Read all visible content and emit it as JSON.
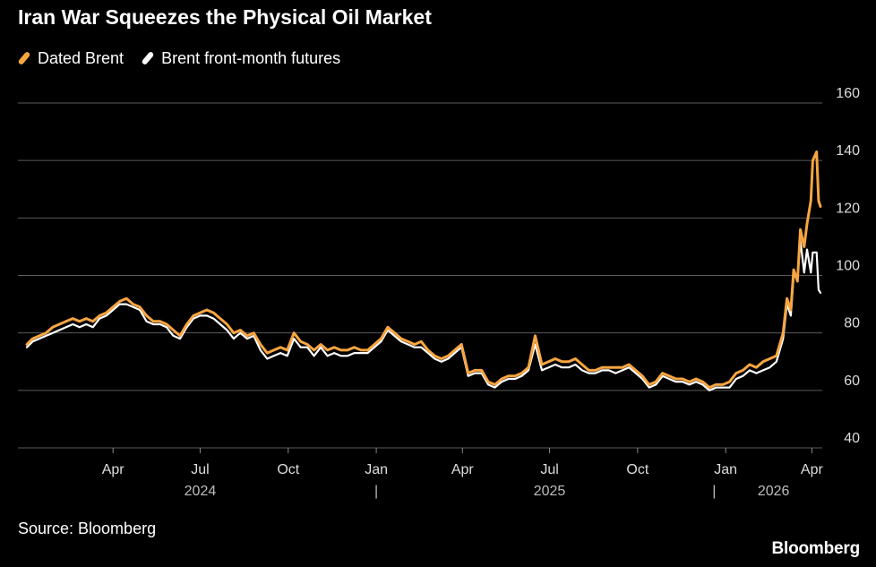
{
  "title": "Iran War Squeezes the Physical Oil Market",
  "legend": [
    {
      "label": "Dated Brent",
      "color": "#f7a541"
    },
    {
      "label": "Brent front-month futures",
      "color": "#ffffff"
    }
  ],
  "source": "Source: Bloomberg",
  "brand": "Bloomberg",
  "chart_data": {
    "type": "line",
    "title": "Iran War Squeezes the Physical Oil Market",
    "xlabel": "",
    "ylabel": "",
    "x_range": [
      "2024-01-02",
      "2026-04-10"
    ],
    "ylim": [
      40,
      160
    ],
    "y_ticks": [
      40,
      60,
      80,
      100,
      120,
      140,
      160
    ],
    "y_tick_labels": [
      "40",
      "60",
      "80",
      "100",
      "120",
      "140",
      "160"
    ],
    "x_ticks": [
      {
        "date": "2024-04-01",
        "label": "Apr"
      },
      {
        "date": "2024-07-01",
        "label": "Jul"
      },
      {
        "date": "2024-10-01",
        "label": "Oct"
      },
      {
        "date": "2025-01-01",
        "label": "Jan"
      },
      {
        "date": "2025-04-01",
        "label": "Apr"
      },
      {
        "date": "2025-07-01",
        "label": "Jul"
      },
      {
        "date": "2025-10-01",
        "label": "Oct"
      },
      {
        "date": "2026-01-01",
        "label": "Jan"
      },
      {
        "date": "2026-04-01",
        "label": "Apr"
      }
    ],
    "year_labels": [
      {
        "label": "2024",
        "date": "2024-07-01"
      },
      {
        "label": "|",
        "date": "2025-01-01"
      },
      {
        "label": "2025",
        "date": "2025-07-01"
      },
      {
        "label": "|",
        "date": "2025-12-20"
      },
      {
        "label": "2026",
        "date": "2026-02-20"
      }
    ],
    "grid": true,
    "legend_position": "top-left",
    "series": [
      {
        "name": "Dated Brent",
        "color": "#f7a541",
        "points": [
          [
            "2024-01-02",
            76
          ],
          [
            "2024-01-08",
            78
          ],
          [
            "2024-01-15",
            79
          ],
          [
            "2024-01-22",
            80
          ],
          [
            "2024-01-29",
            82
          ],
          [
            "2024-02-05",
            83
          ],
          [
            "2024-02-12",
            84
          ],
          [
            "2024-02-19",
            85
          ],
          [
            "2024-02-26",
            84
          ],
          [
            "2024-03-04",
            85
          ],
          [
            "2024-03-11",
            84
          ],
          [
            "2024-03-18",
            86
          ],
          [
            "2024-03-25",
            87
          ],
          [
            "2024-04-01",
            89
          ],
          [
            "2024-04-08",
            91
          ],
          [
            "2024-04-15",
            92
          ],
          [
            "2024-04-22",
            90
          ],
          [
            "2024-04-29",
            89
          ],
          [
            "2024-05-06",
            86
          ],
          [
            "2024-05-13",
            84
          ],
          [
            "2024-05-20",
            84
          ],
          [
            "2024-05-27",
            83
          ],
          [
            "2024-06-03",
            81
          ],
          [
            "2024-06-10",
            79
          ],
          [
            "2024-06-17",
            83
          ],
          [
            "2024-06-24",
            86
          ],
          [
            "2024-07-01",
            87
          ],
          [
            "2024-07-08",
            88
          ],
          [
            "2024-07-15",
            87
          ],
          [
            "2024-07-22",
            85
          ],
          [
            "2024-07-29",
            83
          ],
          [
            "2024-08-05",
            80
          ],
          [
            "2024-08-12",
            81
          ],
          [
            "2024-08-19",
            79
          ],
          [
            "2024-08-26",
            80
          ],
          [
            "2024-09-02",
            76
          ],
          [
            "2024-09-09",
            73
          ],
          [
            "2024-09-16",
            74
          ],
          [
            "2024-09-23",
            75
          ],
          [
            "2024-09-30",
            74
          ],
          [
            "2024-10-07",
            80
          ],
          [
            "2024-10-14",
            77
          ],
          [
            "2024-10-21",
            76
          ],
          [
            "2024-10-28",
            74
          ],
          [
            "2024-11-04",
            76
          ],
          [
            "2024-11-11",
            74
          ],
          [
            "2024-11-18",
            75
          ],
          [
            "2024-11-25",
            74
          ],
          [
            "2024-12-02",
            74
          ],
          [
            "2024-12-09",
            75
          ],
          [
            "2024-12-16",
            74
          ],
          [
            "2024-12-23",
            74
          ],
          [
            "2024-12-30",
            76
          ],
          [
            "2025-01-06",
            78
          ],
          [
            "2025-01-13",
            82
          ],
          [
            "2025-01-20",
            80
          ],
          [
            "2025-01-27",
            78
          ],
          [
            "2025-02-03",
            77
          ],
          [
            "2025-02-10",
            76
          ],
          [
            "2025-02-17",
            77
          ],
          [
            "2025-02-24",
            74
          ],
          [
            "2025-03-03",
            72
          ],
          [
            "2025-03-10",
            71
          ],
          [
            "2025-03-17",
            72
          ],
          [
            "2025-03-24",
            74
          ],
          [
            "2025-03-31",
            76
          ],
          [
            "2025-04-07",
            66
          ],
          [
            "2025-04-14",
            67
          ],
          [
            "2025-04-21",
            67
          ],
          [
            "2025-04-28",
            63
          ],
          [
            "2025-05-05",
            62
          ],
          [
            "2025-05-12",
            64
          ],
          [
            "2025-05-19",
            65
          ],
          [
            "2025-05-26",
            65
          ],
          [
            "2025-06-02",
            66
          ],
          [
            "2025-06-09",
            68
          ],
          [
            "2025-06-16",
            79
          ],
          [
            "2025-06-23",
            69
          ],
          [
            "2025-06-30",
            70
          ],
          [
            "2025-07-07",
            71
          ],
          [
            "2025-07-14",
            70
          ],
          [
            "2025-07-21",
            70
          ],
          [
            "2025-07-28",
            71
          ],
          [
            "2025-08-04",
            69
          ],
          [
            "2025-08-11",
            67
          ],
          [
            "2025-08-18",
            67
          ],
          [
            "2025-08-25",
            68
          ],
          [
            "2025-09-01",
            68
          ],
          [
            "2025-09-08",
            68
          ],
          [
            "2025-09-15",
            68
          ],
          [
            "2025-09-22",
            69
          ],
          [
            "2025-09-29",
            67
          ],
          [
            "2025-10-06",
            65
          ],
          [
            "2025-10-13",
            62
          ],
          [
            "2025-10-20",
            63
          ],
          [
            "2025-10-27",
            66
          ],
          [
            "2025-11-03",
            65
          ],
          [
            "2025-11-10",
            64
          ],
          [
            "2025-11-17",
            64
          ],
          [
            "2025-11-24",
            63
          ],
          [
            "2025-12-01",
            64
          ],
          [
            "2025-12-08",
            63
          ],
          [
            "2025-12-15",
            61
          ],
          [
            "2025-12-22",
            62
          ],
          [
            "2025-12-29",
            62
          ],
          [
            "2026-01-05",
            63
          ],
          [
            "2026-01-12",
            66
          ],
          [
            "2026-01-19",
            67
          ],
          [
            "2026-01-26",
            69
          ],
          [
            "2026-02-02",
            68
          ],
          [
            "2026-02-09",
            70
          ],
          [
            "2026-02-16",
            71
          ],
          [
            "2026-02-23",
            72
          ],
          [
            "2026-03-02",
            80
          ],
          [
            "2026-03-06",
            92
          ],
          [
            "2026-03-10",
            88
          ],
          [
            "2026-03-13",
            102
          ],
          [
            "2026-03-17",
            98
          ],
          [
            "2026-03-20",
            116
          ],
          [
            "2026-03-24",
            110
          ],
          [
            "2026-03-27",
            118
          ],
          [
            "2026-03-31",
            126
          ],
          [
            "2026-04-02",
            140
          ],
          [
            "2026-04-06",
            143
          ],
          [
            "2026-04-08",
            126
          ],
          [
            "2026-04-10",
            124
          ]
        ]
      },
      {
        "name": "Brent front-month futures",
        "color": "#ffffff",
        "points": [
          [
            "2024-01-02",
            75
          ],
          [
            "2024-01-08",
            77
          ],
          [
            "2024-01-15",
            78
          ],
          [
            "2024-01-22",
            79
          ],
          [
            "2024-01-29",
            80
          ],
          [
            "2024-02-05",
            81
          ],
          [
            "2024-02-12",
            82
          ],
          [
            "2024-02-19",
            83
          ],
          [
            "2024-02-26",
            82
          ],
          [
            "2024-03-04",
            83
          ],
          [
            "2024-03-11",
            82
          ],
          [
            "2024-03-18",
            85
          ],
          [
            "2024-03-25",
            86
          ],
          [
            "2024-04-01",
            88
          ],
          [
            "2024-04-08",
            90
          ],
          [
            "2024-04-15",
            90
          ],
          [
            "2024-04-22",
            89
          ],
          [
            "2024-04-29",
            88
          ],
          [
            "2024-05-06",
            84
          ],
          [
            "2024-05-13",
            83
          ],
          [
            "2024-05-20",
            83
          ],
          [
            "2024-05-27",
            82
          ],
          [
            "2024-06-03",
            79
          ],
          [
            "2024-06-10",
            78
          ],
          [
            "2024-06-17",
            82
          ],
          [
            "2024-06-24",
            85
          ],
          [
            "2024-07-01",
            86
          ],
          [
            "2024-07-08",
            86
          ],
          [
            "2024-07-15",
            85
          ],
          [
            "2024-07-22",
            83
          ],
          [
            "2024-07-29",
            81
          ],
          [
            "2024-08-05",
            78
          ],
          [
            "2024-08-12",
            80
          ],
          [
            "2024-08-19",
            78
          ],
          [
            "2024-08-26",
            79
          ],
          [
            "2024-09-02",
            74
          ],
          [
            "2024-09-09",
            71
          ],
          [
            "2024-09-16",
            72
          ],
          [
            "2024-09-23",
            73
          ],
          [
            "2024-09-30",
            72
          ],
          [
            "2024-10-07",
            78
          ],
          [
            "2024-10-14",
            75
          ],
          [
            "2024-10-21",
            75
          ],
          [
            "2024-10-28",
            72
          ],
          [
            "2024-11-04",
            75
          ],
          [
            "2024-11-11",
            72
          ],
          [
            "2024-11-18",
            73
          ],
          [
            "2024-11-25",
            72
          ],
          [
            "2024-12-02",
            72
          ],
          [
            "2024-12-09",
            73
          ],
          [
            "2024-12-16",
            73
          ],
          [
            "2024-12-23",
            73
          ],
          [
            "2024-12-30",
            75
          ],
          [
            "2025-01-06",
            77
          ],
          [
            "2025-01-13",
            81
          ],
          [
            "2025-01-20",
            79
          ],
          [
            "2025-01-27",
            77
          ],
          [
            "2025-02-03",
            76
          ],
          [
            "2025-02-10",
            75
          ],
          [
            "2025-02-17",
            75
          ],
          [
            "2025-02-24",
            73
          ],
          [
            "2025-03-03",
            71
          ],
          [
            "2025-03-10",
            70
          ],
          [
            "2025-03-17",
            71
          ],
          [
            "2025-03-24",
            73
          ],
          [
            "2025-03-31",
            75
          ],
          [
            "2025-04-07",
            65
          ],
          [
            "2025-04-14",
            66
          ],
          [
            "2025-04-21",
            66
          ],
          [
            "2025-04-28",
            62
          ],
          [
            "2025-05-05",
            61
          ],
          [
            "2025-05-12",
            63
          ],
          [
            "2025-05-19",
            64
          ],
          [
            "2025-05-26",
            64
          ],
          [
            "2025-06-02",
            65
          ],
          [
            "2025-06-09",
            67
          ],
          [
            "2025-06-16",
            76
          ],
          [
            "2025-06-23",
            67
          ],
          [
            "2025-06-30",
            68
          ],
          [
            "2025-07-07",
            69
          ],
          [
            "2025-07-14",
            68
          ],
          [
            "2025-07-21",
            68
          ],
          [
            "2025-07-28",
            69
          ],
          [
            "2025-08-04",
            67
          ],
          [
            "2025-08-11",
            66
          ],
          [
            "2025-08-18",
            66
          ],
          [
            "2025-08-25",
            67
          ],
          [
            "2025-09-01",
            67
          ],
          [
            "2025-09-08",
            66
          ],
          [
            "2025-09-15",
            67
          ],
          [
            "2025-09-22",
            68
          ],
          [
            "2025-09-29",
            66
          ],
          [
            "2025-10-06",
            64
          ],
          [
            "2025-10-13",
            61
          ],
          [
            "2025-10-20",
            62
          ],
          [
            "2025-10-27",
            65
          ],
          [
            "2025-11-03",
            64
          ],
          [
            "2025-11-10",
            63
          ],
          [
            "2025-11-17",
            63
          ],
          [
            "2025-11-24",
            62
          ],
          [
            "2025-12-01",
            63
          ],
          [
            "2025-12-08",
            62
          ],
          [
            "2025-12-15",
            60
          ],
          [
            "2025-12-22",
            61
          ],
          [
            "2025-12-29",
            61
          ],
          [
            "2026-01-05",
            61
          ],
          [
            "2026-01-12",
            64
          ],
          [
            "2026-01-19",
            65
          ],
          [
            "2026-01-26",
            67
          ],
          [
            "2026-02-02",
            66
          ],
          [
            "2026-02-09",
            67
          ],
          [
            "2026-02-16",
            68
          ],
          [
            "2026-02-23",
            70
          ],
          [
            "2026-03-02",
            78
          ],
          [
            "2026-03-06",
            90
          ],
          [
            "2026-03-10",
            86
          ],
          [
            "2026-03-13",
            100
          ],
          [
            "2026-03-17",
            99
          ],
          [
            "2026-03-20",
            112
          ],
          [
            "2026-03-24",
            101
          ],
          [
            "2026-03-27",
            109
          ],
          [
            "2026-03-31",
            101
          ],
          [
            "2026-04-02",
            108
          ],
          [
            "2026-04-06",
            108
          ],
          [
            "2026-04-08",
            95
          ],
          [
            "2026-04-10",
            94
          ]
        ]
      }
    ]
  }
}
